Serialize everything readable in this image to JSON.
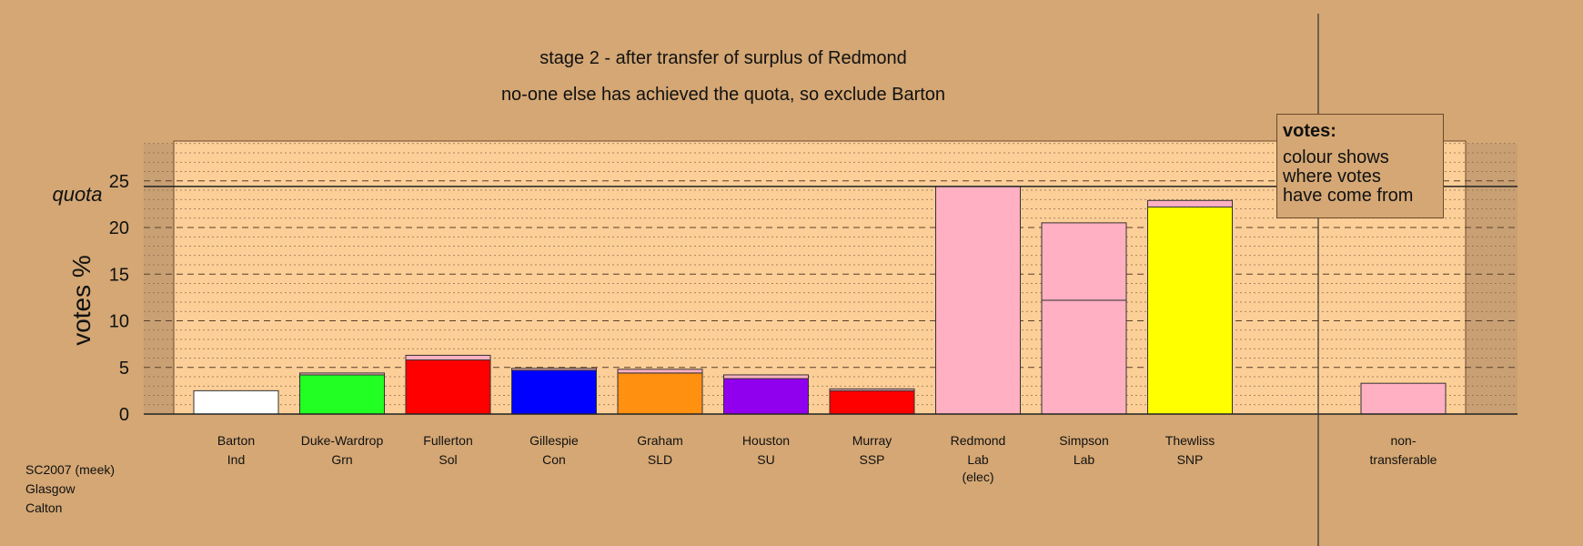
{
  "titles": {
    "line1": "stage 2 - after transfer of surplus of Redmond",
    "line2": "no-one else has achieved the quota, so exclude Barton"
  },
  "legend": {
    "heading": "votes:",
    "lines": [
      "colour shows",
      "where votes",
      "have come from"
    ]
  },
  "footer": [
    "SC2007 (meek)",
    "Glasgow",
    "Calton"
  ],
  "colors": {
    "background": "#d4a774",
    "plot_area": "#fdcf98",
    "margin_area": "#c8a074",
    "redmond_transfer": "#ffb0c2"
  },
  "chart_data": {
    "type": "bar",
    "stacked": true,
    "title": "stage 2 - after transfer of surplus of Redmond",
    "subtitle": "no-one else has achieved the quota, so exclude Barton",
    "ylabel": "votes %",
    "ylim": [
      0,
      29
    ],
    "yticks": [
      0,
      5,
      10,
      15,
      20,
      25
    ],
    "grid": true,
    "quota": {
      "label": "quota",
      "value": 24.4
    },
    "candidates": [
      {
        "name": "Barton",
        "party": "Ind",
        "segments": [
          {
            "value": 2.5,
            "color": "#ffffff"
          }
        ]
      },
      {
        "name": "Duke-Wardrop",
        "party": "Grn",
        "segments": [
          {
            "value": 4.2,
            "color": "#22ff22"
          },
          {
            "value": 0.2,
            "color": "#ffb0c2"
          }
        ]
      },
      {
        "name": "Fullerton",
        "party": "Sol",
        "segments": [
          {
            "value": 5.8,
            "color": "#ff0000"
          },
          {
            "value": 0.5,
            "color": "#ffb0c2"
          }
        ]
      },
      {
        "name": "Gillespie",
        "party": "Con",
        "segments": [
          {
            "value": 4.7,
            "color": "#0000ff"
          },
          {
            "value": 0.2,
            "color": "#ffb0c2"
          }
        ]
      },
      {
        "name": "Graham",
        "party": "SLD",
        "segments": [
          {
            "value": 4.4,
            "color": "#ff9010"
          },
          {
            "value": 0.4,
            "color": "#ffb0c2"
          }
        ]
      },
      {
        "name": "Houston",
        "party": "SU",
        "segments": [
          {
            "value": 3.8,
            "color": "#9000ee"
          },
          {
            "value": 0.4,
            "color": "#ffb0c2"
          }
        ]
      },
      {
        "name": "Murray",
        "party": "SSP",
        "segments": [
          {
            "value": 2.5,
            "color": "#ff0000"
          },
          {
            "value": 0.2,
            "color": "#ffb0c2"
          }
        ]
      },
      {
        "name": "Redmond",
        "party": "Lab",
        "note": "(elec)",
        "segments": [
          {
            "value": 24.4,
            "color": "#ffb0c2"
          }
        ]
      },
      {
        "name": "Simpson",
        "party": "Lab",
        "segments": [
          {
            "value": 12.2,
            "color": "#ffb0c2"
          },
          {
            "value": 8.3,
            "color": "#ffb0c2"
          }
        ]
      },
      {
        "name": "Thewliss",
        "party": "SNP",
        "segments": [
          {
            "value": 22.2,
            "color": "#ffff00"
          },
          {
            "value": 0.7,
            "color": "#ffb0c2"
          }
        ]
      }
    ],
    "nontransferable": {
      "label1": "non-",
      "label2": "transferable",
      "value": 3.3,
      "color": "#ffb0c2"
    }
  }
}
